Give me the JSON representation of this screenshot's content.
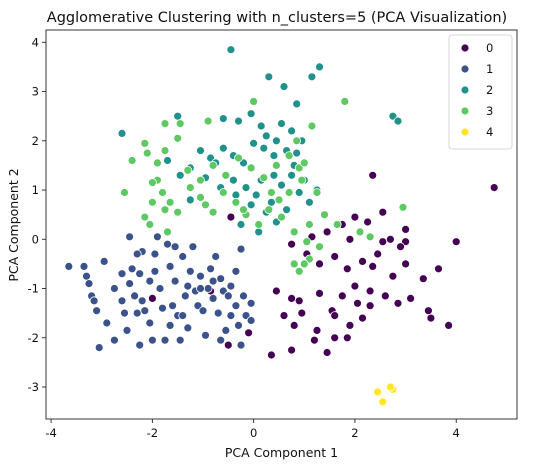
{
  "chart_data": {
    "type": "scatter",
    "title": "Agglomerative Clustering with n_clusters=5 (PCA Visualization)",
    "xlabel": "PCA Component 1",
    "ylabel": "PCA Component 2",
    "xlim": [
      -4.1,
      5.2
    ],
    "ylim": [
      -3.65,
      4.25
    ],
    "xticks": [
      -4,
      -2,
      0,
      2,
      4
    ],
    "yticks": [
      -3,
      -2,
      -1,
      0,
      1,
      2,
      3,
      4
    ],
    "grid": false,
    "legend_position": "top-right",
    "series": [
      {
        "name": "0",
        "color": "#440154",
        "points": [
          [
            0.35,
            -2.35
          ],
          [
            0.75,
            -2.25
          ],
          [
            1.2,
            -2.05
          ],
          [
            1.6,
            -2.0
          ],
          [
            2.15,
            -1.6
          ],
          [
            1.9,
            -1.75
          ],
          [
            1.55,
            -1.45
          ],
          [
            0.8,
            -1.75
          ],
          [
            0.95,
            -1.5
          ],
          [
            1.3,
            -1.1
          ],
          [
            1.75,
            -1.15
          ],
          [
            2.0,
            -0.95
          ],
          [
            2.3,
            -1.35
          ],
          [
            2.6,
            -1.15
          ],
          [
            2.85,
            -1.3
          ],
          [
            3.1,
            -1.2
          ],
          [
            3.5,
            -1.6
          ],
          [
            3.85,
            -1.75
          ],
          [
            3.35,
            -0.8
          ],
          [
            3.65,
            -0.6
          ],
          [
            3.0,
            -0.5
          ],
          [
            2.75,
            -0.75
          ],
          [
            2.45,
            -0.3
          ],
          [
            2.15,
            -0.45
          ],
          [
            1.85,
            -0.6
          ],
          [
            1.6,
            -0.35
          ],
          [
            1.3,
            -0.5
          ],
          [
            1.05,
            -0.3
          ],
          [
            0.75,
            -0.1
          ],
          [
            1.15,
            0.05
          ],
          [
            1.45,
            0.15
          ],
          [
            1.75,
            0.3
          ],
          [
            2.0,
            0.45
          ],
          [
            2.25,
            0.35
          ],
          [
            1.9,
            0.0
          ],
          [
            2.55,
            -0.05
          ],
          [
            3.0,
            -0.05
          ],
          [
            4.0,
            -0.05
          ],
          [
            4.75,
            1.05
          ],
          [
            2.35,
            1.3
          ],
          [
            2.55,
            0.55
          ],
          [
            3.0,
            0.2
          ],
          [
            2.7,
            0.0
          ],
          [
            0.9,
            -1.25
          ],
          [
            1.25,
            -1.85
          ],
          [
            1.45,
            -2.3
          ],
          [
            2.3,
            -1.05
          ],
          [
            3.45,
            -1.45
          ],
          [
            2.05,
            -1.3
          ],
          [
            0.6,
            -1.55
          ],
          [
            0.75,
            -1.2
          ],
          [
            1.6,
            -1.55
          ],
          [
            1.85,
            -2.0
          ],
          [
            2.9,
            -0.15
          ],
          [
            2.35,
            -0.55
          ],
          [
            -0.45,
            0.45
          ],
          [
            -0.1,
            -1.9
          ],
          [
            -0.5,
            -2.15
          ],
          [
            -2.0,
            -1.2
          ],
          [
            -0.85,
            -1.05
          ],
          [
            0.45,
            -1.05
          ]
        ]
      },
      {
        "name": "1",
        "color": "#3b528b",
        "points": [
          [
            -3.65,
            -0.55
          ],
          [
            -3.3,
            -0.75
          ],
          [
            -3.35,
            -0.55
          ],
          [
            -3.2,
            -1.15
          ],
          [
            -3.15,
            -1.25
          ],
          [
            -3.1,
            -1.45
          ],
          [
            -3.05,
            -2.2
          ],
          [
            -2.95,
            -0.45
          ],
          [
            -2.75,
            -1.0
          ],
          [
            -2.75,
            -2.05
          ],
          [
            -2.6,
            -0.7
          ],
          [
            -2.55,
            -1.5
          ],
          [
            -2.5,
            -1.85
          ],
          [
            -2.45,
            -0.9
          ],
          [
            -2.4,
            -0.6
          ],
          [
            -2.35,
            -1.15
          ],
          [
            -2.3,
            -1.5
          ],
          [
            -2.25,
            -2.15
          ],
          [
            -2.2,
            -0.25
          ],
          [
            -2.25,
            -0.7
          ],
          [
            -2.2,
            -1.25
          ],
          [
            -2.15,
            -1.45
          ],
          [
            -2.05,
            -1.7
          ],
          [
            -2.05,
            -0.85
          ],
          [
            -1.95,
            -0.65
          ],
          [
            -1.95,
            -0.3
          ],
          [
            -1.85,
            -1.0
          ],
          [
            -1.8,
            -1.4
          ],
          [
            -1.75,
            -2.05
          ],
          [
            -1.7,
            -0.1
          ],
          [
            -1.65,
            -0.55
          ],
          [
            -1.6,
            -1.35
          ],
          [
            -1.55,
            -0.85
          ],
          [
            -1.5,
            -1.55
          ],
          [
            -1.45,
            -2.05
          ],
          [
            -1.4,
            -0.35
          ],
          [
            -1.35,
            -1.15
          ],
          [
            -1.3,
            -0.95
          ],
          [
            -1.3,
            -1.8
          ],
          [
            -1.25,
            -0.65
          ],
          [
            -1.2,
            -0.15
          ],
          [
            -1.15,
            -1.05
          ],
          [
            -1.1,
            -1.35
          ],
          [
            -1.05,
            -0.75
          ],
          [
            -1.0,
            -1.45
          ],
          [
            -0.95,
            -1.95
          ],
          [
            -0.9,
            -1.0
          ],
          [
            -0.85,
            -0.6
          ],
          [
            -0.8,
            -1.2
          ],
          [
            -0.75,
            -0.35
          ],
          [
            -0.7,
            -1.5
          ],
          [
            -0.65,
            -2.05
          ],
          [
            -0.6,
            -1.05
          ],
          [
            -0.55,
            -1.85
          ],
          [
            -0.5,
            -1.15
          ],
          [
            -0.45,
            -1.55
          ],
          [
            -0.35,
            -1.35
          ],
          [
            -0.3,
            -1.75
          ],
          [
            -0.25,
            -2.15
          ],
          [
            -0.2,
            -1.15
          ],
          [
            -0.15,
            -1.55
          ],
          [
            -0.05,
            -1.65
          ],
          [
            -0.05,
            -1.3
          ],
          [
            -0.35,
            -0.65
          ],
          [
            -0.25,
            -0.2
          ],
          [
            -1.9,
            0.05
          ],
          [
            -2.45,
            0.05
          ],
          [
            -2.3,
            -0.3
          ],
          [
            -2.6,
            -1.25
          ],
          [
            -2.9,
            -1.7
          ],
          [
            -1.65,
            -1.75
          ],
          [
            -0.8,
            -0.85
          ],
          [
            -0.45,
            -0.95
          ],
          [
            -1.4,
            -1.55
          ],
          [
            -2.0,
            -2.05
          ],
          [
            -3.25,
            -0.9
          ],
          [
            -1.05,
            -1.0
          ],
          [
            -0.65,
            -0.8
          ],
          [
            -1.55,
            -0.15
          ]
        ]
      },
      {
        "name": "2",
        "color": "#21918c",
        "points": [
          [
            -0.45,
            3.85
          ],
          [
            0.3,
            3.3
          ],
          [
            1.3,
            3.5
          ],
          [
            1.15,
            3.3
          ],
          [
            0.6,
            3.1
          ],
          [
            2.75,
            2.5
          ],
          [
            2.85,
            2.4
          ],
          [
            -2.6,
            2.15
          ],
          [
            -1.5,
            2.5
          ],
          [
            -0.6,
            2.45
          ],
          [
            -0.3,
            2.4
          ],
          [
            -0.05,
            2.55
          ],
          [
            0.15,
            2.3
          ],
          [
            0.25,
            2.1
          ],
          [
            0.45,
            2.0
          ],
          [
            0.55,
            2.35
          ],
          [
            0.75,
            2.2
          ],
          [
            0.95,
            2.0
          ],
          [
            0.85,
            1.75
          ],
          [
            0.65,
            1.8
          ],
          [
            0.4,
            1.7
          ],
          [
            0.2,
            1.85
          ],
          [
            0.0,
            1.95
          ],
          [
            -0.2,
            1.55
          ],
          [
            -0.4,
            1.7
          ],
          [
            -0.6,
            1.85
          ],
          [
            -0.85,
            1.65
          ],
          [
            -1.05,
            1.8
          ],
          [
            -1.25,
            1.45
          ],
          [
            -1.45,
            1.3
          ],
          [
            -1.7,
            1.6
          ],
          [
            -1.25,
            0.8
          ],
          [
            -0.95,
            1.25
          ],
          [
            -0.65,
            1.05
          ],
          [
            -0.4,
            1.2
          ],
          [
            -0.15,
            1.05
          ],
          [
            0.05,
            0.9
          ],
          [
            0.35,
            0.75
          ],
          [
            0.55,
            1.1
          ],
          [
            0.75,
            1.3
          ],
          [
            0.9,
            0.95
          ],
          [
            1.1,
            0.75
          ],
          [
            1.25,
            1.0
          ],
          [
            0.25,
            0.55
          ],
          [
            0.45,
            0.35
          ],
          [
            0.65,
            0.6
          ],
          [
            0.15,
            1.2
          ],
          [
            -0.05,
            0.7
          ],
          [
            0.4,
            1.3
          ],
          [
            0.8,
            1.5
          ],
          [
            -0.25,
            0.3
          ],
          [
            0.1,
            0.15
          ],
          [
            0.85,
            2.75
          ],
          [
            -0.75,
            1.55
          ],
          [
            -0.35,
            0.9
          ],
          [
            1.0,
            1.2
          ]
        ]
      },
      {
        "name": "3",
        "color": "#5ec962",
        "points": [
          [
            0.0,
            2.8
          ],
          [
            1.15,
            2.3
          ],
          [
            1.8,
            2.8
          ],
          [
            -0.9,
            2.4
          ],
          [
            -1.45,
            2.35
          ],
          [
            -1.5,
            2.05
          ],
          [
            -1.75,
            1.8
          ],
          [
            -2.1,
            1.75
          ],
          [
            -1.9,
            1.55
          ],
          [
            -1.9,
            1.2
          ],
          [
            -1.8,
            0.95
          ],
          [
            -1.65,
            0.75
          ],
          [
            -1.5,
            0.55
          ],
          [
            -1.75,
            0.6
          ],
          [
            -2.0,
            0.75
          ],
          [
            -2.15,
            0.45
          ],
          [
            -2.05,
            0.3
          ],
          [
            -2.55,
            0.95
          ],
          [
            -2.4,
            1.6
          ],
          [
            -2.15,
            1.95
          ],
          [
            -1.75,
            2.35
          ],
          [
            -1.3,
            1.4
          ],
          [
            -1.05,
            1.2
          ],
          [
            -0.8,
            1.5
          ],
          [
            -0.55,
            1.3
          ],
          [
            -0.3,
            1.65
          ],
          [
            -0.05,
            1.45
          ],
          [
            0.2,
            1.25
          ],
          [
            0.45,
            1.5
          ],
          [
            0.7,
            1.7
          ],
          [
            0.9,
            1.45
          ],
          [
            0.95,
            1.2
          ],
          [
            0.7,
            0.95
          ],
          [
            0.5,
            0.8
          ],
          [
            0.3,
            0.6
          ],
          [
            0.1,
            0.3
          ],
          [
            -0.15,
            0.5
          ],
          [
            -0.35,
            0.75
          ],
          [
            -0.6,
            0.95
          ],
          [
            -0.8,
            0.55
          ],
          [
            -1.05,
            0.85
          ],
          [
            -1.25,
            1.05
          ],
          [
            0.55,
            0.45
          ],
          [
            0.8,
            0.15
          ],
          [
            1.1,
            0.3
          ],
          [
            1.4,
            0.5
          ],
          [
            1.65,
            0.3
          ],
          [
            1.3,
            -0.15
          ],
          [
            1.05,
            -0.05
          ],
          [
            1.1,
            -0.4
          ],
          [
            0.9,
            -0.65
          ],
          [
            0.8,
            -0.5
          ],
          [
            1.0,
            -0.5
          ],
          [
            2.3,
            0.05
          ],
          [
            2.1,
            0.15
          ],
          [
            2.95,
            0.65
          ],
          [
            1.0,
            1.55
          ],
          [
            0.85,
            2.0
          ],
          [
            -2.0,
            1.15
          ],
          [
            -1.7,
            0.15
          ],
          [
            0.35,
            0.95
          ],
          [
            -0.2,
            0.6
          ],
          [
            1.25,
            0.95
          ],
          [
            -0.95,
            0.7
          ]
        ]
      },
      {
        "name": "4",
        "color": "#fde725",
        "points": [
          [
            2.45,
            -3.1
          ],
          [
            2.55,
            -3.3
          ],
          [
            2.75,
            -3.05
          ],
          [
            2.7,
            -3.0
          ]
        ]
      }
    ]
  }
}
